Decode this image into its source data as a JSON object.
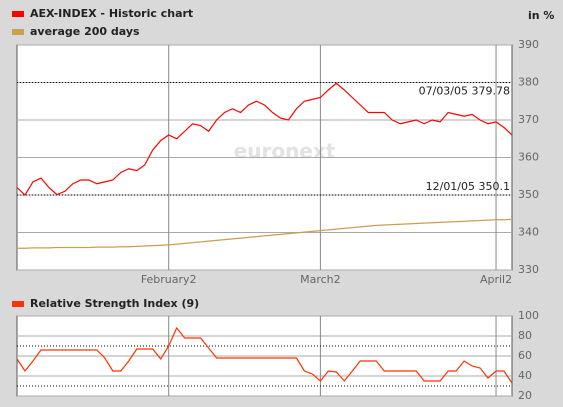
{
  "chart_data": [
    {
      "type": "line",
      "ylabel": "in %",
      "watermark": "euronext",
      "xlim": [
        0,
        62
      ],
      "xticks": [
        {
          "value": 19,
          "label": "February2"
        },
        {
          "value": 38,
          "label": "March2"
        },
        {
          "value": 60,
          "label": "April2"
        }
      ],
      "ylim": [
        330,
        390
      ],
      "yticks": [
        330,
        340,
        350,
        360,
        370,
        380,
        390
      ],
      "grid": true,
      "hlines": [
        380,
        350
      ],
      "annotations": [
        {
          "text": "07/03/05 379.78",
          "at": 40
        },
        {
          "text": "12/01/05 350.1",
          "at": 5
        }
      ],
      "series": [
        {
          "name": "AEX-INDEX - Historic chart",
          "color": "#ff0000",
          "values": [
            352,
            350,
            353.5,
            354.5,
            352,
            350.1,
            351,
            353,
            354,
            354,
            353,
            353.5,
            354,
            356,
            357,
            356.5,
            358,
            362,
            364.5,
            366,
            365,
            367,
            369,
            368.5,
            367,
            370,
            372,
            373,
            372,
            374,
            375,
            374,
            372,
            370.5,
            370,
            373,
            375,
            375.5,
            376,
            378,
            379.78,
            378,
            376,
            374,
            372,
            372,
            372,
            370,
            369,
            369.5,
            370,
            369,
            370,
            369.5,
            372,
            371.5,
            371,
            371.5,
            370,
            369,
            369.5,
            368,
            366
          ]
        },
        {
          "name": "average 200 days",
          "color": "#c8a050",
          "values": [
            335.8,
            335.8,
            335.9,
            335.9,
            335.9,
            336,
            336,
            336,
            336,
            336,
            336.1,
            336.1,
            336.1,
            336.2,
            336.2,
            336.3,
            336.4,
            336.5,
            336.6,
            336.7,
            336.9,
            337.1,
            337.3,
            337.5,
            337.7,
            337.9,
            338.1,
            338.3,
            338.5,
            338.7,
            338.9,
            339.1,
            339.3,
            339.5,
            339.7,
            339.9,
            340.1,
            340.3,
            340.5,
            340.7,
            340.9,
            341.1,
            341.3,
            341.5,
            341.7,
            341.9,
            342,
            342.1,
            342.2,
            342.3,
            342.4,
            342.5,
            342.6,
            342.7,
            342.8,
            342.9,
            343,
            343.1,
            343.2,
            343.3,
            343.4,
            343.4,
            343.5
          ]
        }
      ]
    },
    {
      "type": "line",
      "xlim": [
        0,
        62
      ],
      "ylim": [
        20,
        100
      ],
      "yticks": [
        20,
        40,
        60,
        80,
        100
      ],
      "grid": true,
      "hlines": [
        70,
        30
      ],
      "series": [
        {
          "name": "Relative Strength Index (9)",
          "color": "#ff3300",
          "values": [
            57,
            45,
            55,
            66,
            66,
            66,
            66,
            66,
            66,
            66,
            66,
            58,
            45,
            45,
            55,
            67,
            67,
            67,
            57,
            70,
            88,
            78,
            78,
            78,
            68,
            58,
            58,
            58,
            58,
            58,
            58,
            58,
            58,
            58,
            58,
            58,
            45,
            42,
            35,
            45,
            44,
            35,
            45,
            55,
            55,
            55,
            45,
            45,
            45,
            45,
            45,
            35,
            35,
            35,
            45,
            45,
            55,
            50,
            48,
            38,
            45,
            45,
            33
          ]
        }
      ]
    }
  ]
}
